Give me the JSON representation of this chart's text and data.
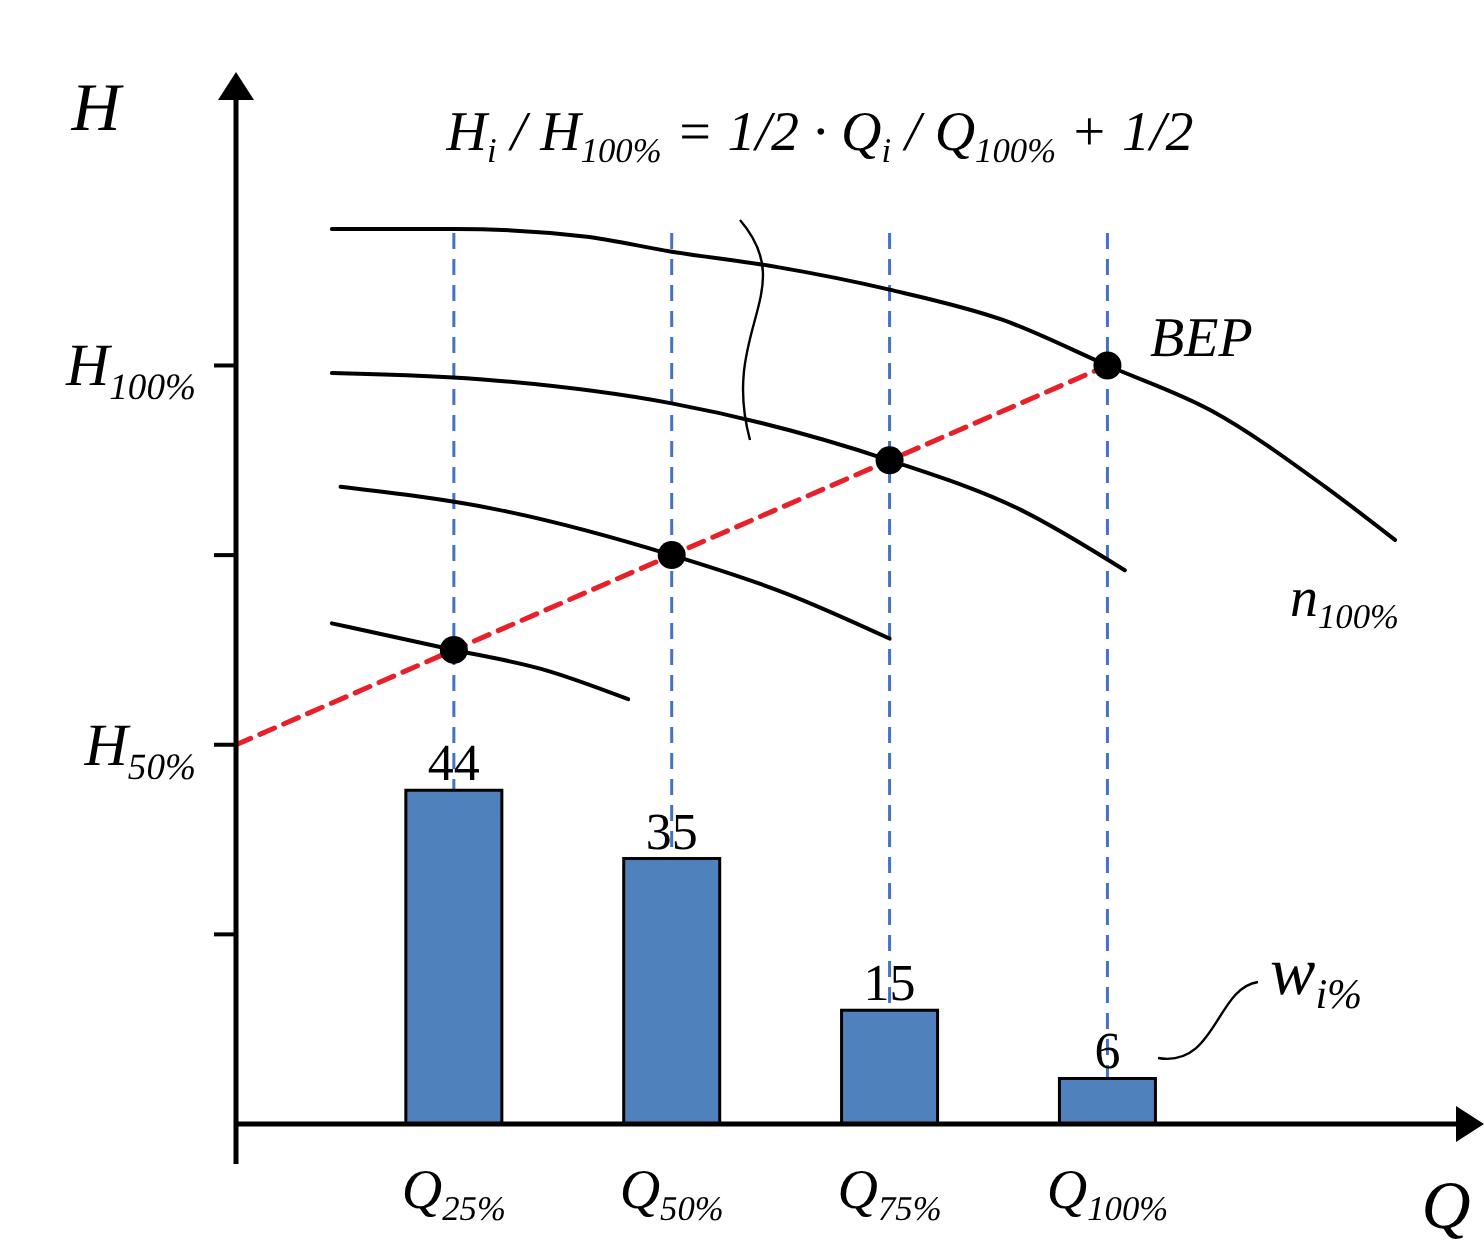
{
  "chart_data": {
    "type": "bar",
    "xlabel": "Q",
    "ylabel": "H",
    "xlim": [
      0,
      140
    ],
    "ylim": [
      0,
      135
    ],
    "xticks": [
      {
        "value": 25,
        "label": "Q$_{25%}$"
      },
      {
        "value": 50,
        "label": "Q$_{50%}$"
      },
      {
        "value": 75,
        "label": "Q$_{75%}$"
      },
      {
        "value": 100,
        "label": "Q$_{100%}$"
      }
    ],
    "yticks": [
      {
        "value": 25,
        "label": null
      },
      {
        "value": 50,
        "label": "H$_{50%}$"
      },
      {
        "value": 75,
        "label": null
      },
      {
        "value": 100,
        "label": "H$_{100%}$"
      }
    ],
    "series": [
      {
        "color": "#4f81bd",
        "x": [
          25,
          50,
          75,
          100
        ],
        "values": [
          44,
          35,
          15,
          6
        ],
        "value_labels": [
          "44",
          "35",
          "15",
          "6"
        ]
      },
      {
        "type": "line",
        "color": "#000000",
        "x": [
          11,
          25,
          40,
          50,
          62,
          75,
          88,
          100,
          112,
          125,
          133
        ],
        "values": [
          118,
          118,
          117,
          115,
          113,
          110,
          106,
          100,
          94,
          84,
          77
        ]
      },
      {
        "type": "line",
        "color": "#000000",
        "x": [
          11,
          30,
          50,
          75,
          90,
          102
        ],
        "values": [
          99,
          98,
          95,
          87.5,
          81,
          73
        ]
      },
      {
        "type": "line",
        "color": "#000000",
        "x": [
          12,
          30,
          50,
          63,
          75
        ],
        "values": [
          84,
          81,
          75,
          70,
          64
        ]
      },
      {
        "type": "line",
        "color": "#000000",
        "x": [
          11,
          25,
          35,
          45
        ],
        "values": [
          66,
          62.5,
          60,
          56
        ]
      },
      {
        "type": "line",
        "color": "#e8202a",
        "line_style": "dashed",
        "x": [
          0,
          100
        ],
        "values": [
          50,
          100
        ]
      },
      {
        "type": "scatter",
        "color": "#000000",
        "marker": "circle",
        "x": [
          25,
          50,
          75,
          100
        ],
        "values": [
          62.5,
          75,
          87.5,
          100
        ]
      }
    ],
    "ref_lines": [
      {
        "axis": "x",
        "value": 25,
        "color": "#4472c4",
        "line_style": "dashed"
      },
      {
        "axis": "x",
        "value": 50,
        "color": "#4472c4",
        "line_style": "dashed"
      },
      {
        "axis": "x",
        "value": 75,
        "color": "#4472c4",
        "line_style": "dashed"
      },
      {
        "axis": "x",
        "value": 100,
        "color": "#4472c4",
        "line_style": "dashed"
      }
    ],
    "annotations": [
      "H$_{i}$ / H$_{100%}$ = 1/2 · Q$_{i}$ / Q$_{100%}$ + 1/2",
      "BEP",
      "n$_{100%}$",
      "w$_{i%}$"
    ]
  }
}
